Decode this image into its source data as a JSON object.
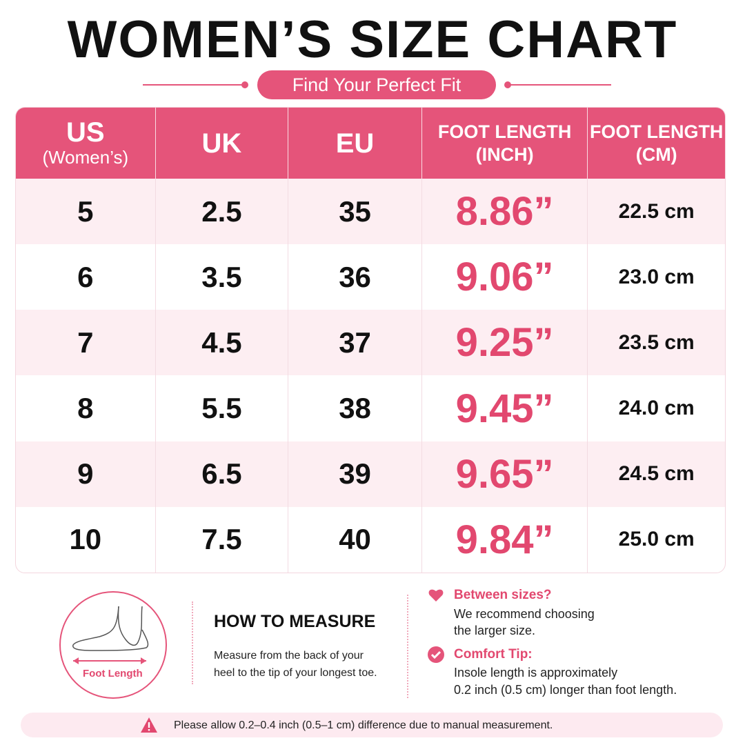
{
  "title": "WOMEN’S SIZE CHART",
  "subtitle": "Find Your Perfect Fit",
  "table": {
    "headers": [
      [
        "US",
        "(Women’s)"
      ],
      [
        "UK"
      ],
      [
        "EU"
      ],
      [
        "FOOT LENGTH",
        "(INCH)"
      ],
      [
        "FOOT LENGTH",
        "(CM)"
      ]
    ],
    "rows": [
      [
        "5",
        "2.5",
        "35",
        "8.86”",
        "22.5 cm"
      ],
      [
        "6",
        "3.5",
        "36",
        "9.06”",
        "23.0 cm"
      ],
      [
        "7",
        "4.5",
        "37",
        "9.25”",
        "23.5 cm"
      ],
      [
        "8",
        "5.5",
        "38",
        "9.45”",
        "24.0 cm"
      ],
      [
        "9",
        "6.5",
        "39",
        "9.65”",
        "24.5 cm"
      ],
      [
        "10",
        "7.5",
        "40",
        "9.84”",
        "25.0 cm"
      ]
    ]
  },
  "measure": {
    "label": "Foot Length",
    "heading": "HOW TO MEASURE",
    "lines": [
      "Measure from the back of your",
      "heel to the tip of your longest toe."
    ]
  },
  "tips": [
    {
      "title": "Between sizes?",
      "lines": [
        "We recommend choosing",
        "the larger size."
      ]
    },
    {
      "title": "Comfort Tip:",
      "lines": [
        "Insole length is approximately",
        "0.2 inch (0.5 cm) longer than foot length."
      ]
    }
  ],
  "note": "Please allow 0.2–0.4 inch (0.5–1 cm) difference due to manual measurement."
}
